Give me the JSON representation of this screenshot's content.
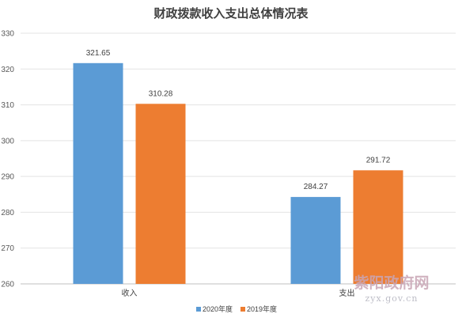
{
  "chart_data": {
    "type": "bar",
    "title": "财政拨款收入支出总体情况表",
    "categories": [
      "收入",
      "支出"
    ],
    "series": [
      {
        "name": "2020年度",
        "color": "#5b9bd5",
        "values": [
          321.65,
          284.27
        ]
      },
      {
        "name": "2019年度",
        "color": "#ed7d31",
        "values": [
          310.28,
          291.72
        ]
      }
    ],
    "yticks": [
      "260",
      "270",
      "280",
      "290",
      "300",
      "310",
      "320",
      "330"
    ],
    "ylim": [
      260,
      330
    ],
    "grid": true,
    "legend_position": "bottom"
  },
  "watermark": {
    "main": "紫阳政府网",
    "sub": "zyx.gov.cn"
  }
}
